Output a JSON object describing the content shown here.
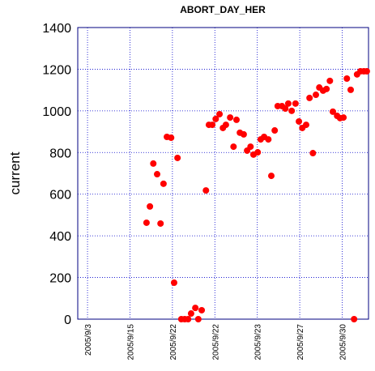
{
  "chart_data": {
    "type": "scatter",
    "title": "ABORT_DAY_HER",
    "y_label": "current",
    "color": "#ff0000",
    "grid": true,
    "xlim": [
      -0.23,
      6.62
    ],
    "ylim": [
      0,
      1400
    ],
    "yticks": [
      0,
      200,
      400,
      600,
      800,
      1000,
      1200,
      1400
    ],
    "xticks": [
      {
        "value": 0,
        "label": "2005/9/3"
      },
      {
        "value": 1,
        "label": "2005/9/15"
      },
      {
        "value": 2,
        "label": "2005/9/22"
      },
      {
        "value": 3,
        "label": "2005/9/22"
      },
      {
        "value": 4,
        "label": "2005/9/23"
      },
      {
        "value": 5,
        "label": "2005/9/27"
      },
      {
        "value": 6,
        "label": "2005/9/30"
      }
    ],
    "x": [
      1.39,
      1.47,
      1.55,
      1.64,
      1.72,
      1.79,
      1.87,
      1.97,
      2.04,
      2.12,
      2.21,
      2.29,
      2.37,
      2.44,
      2.54,
      2.61,
      2.69,
      2.79,
      2.86,
      2.94,
      3.02,
      3.11,
      3.19,
      3.26,
      3.36,
      3.44,
      3.51,
      3.59,
      3.68,
      3.76,
      3.84,
      3.91,
      4.01,
      4.08,
      4.16,
      4.26,
      4.33,
      4.41,
      4.48,
      4.58,
      4.66,
      4.73,
      4.81,
      4.9,
      4.98,
      5.06,
      5.15,
      5.23,
      5.31,
      5.38,
      5.46,
      5.55,
      5.63,
      5.71,
      5.78,
      5.88,
      5.95,
      6.03,
      6.11,
      6.2,
      6.28,
      6.35,
      6.43,
      6.51,
      6.58
    ],
    "values": [
      463,
      541,
      747,
      696,
      459,
      650,
      875,
      871,
      175,
      774,
      0,
      0,
      0,
      27,
      54,
      0,
      43,
      618,
      933,
      933,
      961,
      984,
      918,
      933,
      968,
      828,
      957,
      895,
      887,
      809,
      828,
      790,
      801,
      863,
      875,
      863,
      688,
      906,
      1023,
      1023,
      1011,
      1035,
      1000,
      1035,
      949,
      918,
      933,
      1062,
      797,
      1077,
      1112,
      1097,
      1105,
      1144,
      996,
      976,
      965,
      968,
      1155,
      1101,
      0,
      1175,
      1190,
      1190,
      1190
    ]
  }
}
